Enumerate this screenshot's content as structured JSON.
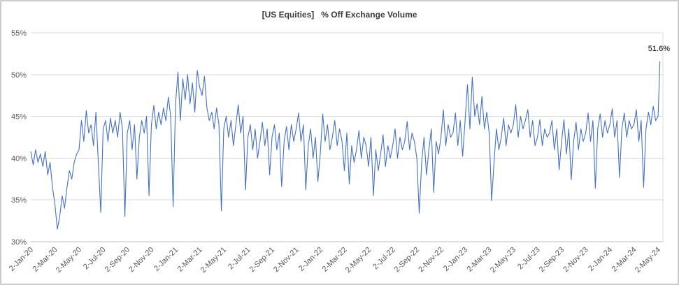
{
  "chart_data": {
    "type": "line",
    "title": "[US Equities]   % Off Exchange Volume",
    "xlabel": "",
    "ylabel": "",
    "legend": "none",
    "grid": "horizontal",
    "ylim": [
      30,
      55
    ],
    "xlim": [
      0,
      52.4
    ],
    "line_color": "#4472C4",
    "gridline_color": "#d9d9d9",
    "axis_line_color": "#bfbfbf",
    "tick_label_color": "#595959",
    "annotation": {
      "text": "51.6%",
      "x": 52.15,
      "y": 51.6
    },
    "y_ticks": [
      {
        "value": 30,
        "label": "30%"
      },
      {
        "value": 35,
        "label": "35%"
      },
      {
        "value": 40,
        "label": "40%"
      },
      {
        "value": 45,
        "label": "45%"
      },
      {
        "value": 50,
        "label": "50%"
      },
      {
        "value": 55,
        "label": "55%"
      }
    ],
    "x_ticks": [
      {
        "pos": 0,
        "label": "2-Jan-20"
      },
      {
        "pos": 2,
        "label": "2-Mar-20"
      },
      {
        "pos": 4,
        "label": "2-May-20"
      },
      {
        "pos": 6,
        "label": "2-Jul-20"
      },
      {
        "pos": 8,
        "label": "2-Sep-20"
      },
      {
        "pos": 10,
        "label": "2-Nov-20"
      },
      {
        "pos": 12,
        "label": "2-Jan-21"
      },
      {
        "pos": 14,
        "label": "2-Mar-21"
      },
      {
        "pos": 16,
        "label": "2-May-21"
      },
      {
        "pos": 18,
        "label": "2-Jul-21"
      },
      {
        "pos": 20,
        "label": "2-Sep-21"
      },
      {
        "pos": 22,
        "label": "2-Nov-21"
      },
      {
        "pos": 24,
        "label": "2-Jan-22"
      },
      {
        "pos": 26,
        "label": "2-Mar-22"
      },
      {
        "pos": 28,
        "label": "2-May-22"
      },
      {
        "pos": 30,
        "label": "2-Jul-22"
      },
      {
        "pos": 32,
        "label": "2-Sep-22"
      },
      {
        "pos": 34,
        "label": "2-Nov-22"
      },
      {
        "pos": 36,
        "label": "2-Jan-23"
      },
      {
        "pos": 38,
        "label": "2-Mar-23"
      },
      {
        "pos": 40,
        "label": "2-May-23"
      },
      {
        "pos": 42,
        "label": "2-Jul-23"
      },
      {
        "pos": 44,
        "label": "2-Sep-23"
      },
      {
        "pos": 46,
        "label": "2-Nov-23"
      },
      {
        "pos": 48,
        "label": "2-Jan-24"
      },
      {
        "pos": 50,
        "label": "2-Mar-24"
      },
      {
        "pos": 52,
        "label": "2-May-24"
      }
    ],
    "series": [
      {
        "points": [
          [
            0,
            40.8
          ],
          [
            0.2,
            39.2
          ],
          [
            0.4,
            41
          ],
          [
            0.6,
            39.5
          ],
          [
            0.8,
            40.5
          ],
          [
            1,
            39
          ],
          [
            1.2,
            40.8
          ],
          [
            1.4,
            38
          ],
          [
            1.6,
            39.5
          ],
          [
            1.8,
            36.5
          ],
          [
            2,
            34.5
          ],
          [
            2.2,
            31.5
          ],
          [
            2.4,
            33
          ],
          [
            2.6,
            35.5
          ],
          [
            2.8,
            34
          ],
          [
            3,
            36.5
          ],
          [
            3.2,
            38.5
          ],
          [
            3.4,
            37.5
          ],
          [
            3.6,
            39.5
          ],
          [
            3.8,
            40.5
          ],
          [
            4,
            41
          ],
          [
            4.2,
            44.5
          ],
          [
            4.4,
            42
          ],
          [
            4.6,
            45.7
          ],
          [
            4.8,
            43
          ],
          [
            5,
            44
          ],
          [
            5.2,
            41.5
          ],
          [
            5.4,
            45.5
          ],
          [
            5.6,
            39.5
          ],
          [
            5.8,
            33.5
          ],
          [
            6,
            43.5
          ],
          [
            6.2,
            44.5
          ],
          [
            6.4,
            42
          ],
          [
            6.6,
            44.8
          ],
          [
            6.8,
            43
          ],
          [
            7,
            44.5
          ],
          [
            7.2,
            42.5
          ],
          [
            7.4,
            45.5
          ],
          [
            7.6,
            43.5
          ],
          [
            7.8,
            33
          ],
          [
            8,
            43
          ],
          [
            8.2,
            44.5
          ],
          [
            8.4,
            41
          ],
          [
            8.6,
            44
          ],
          [
            8.8,
            37.5
          ],
          [
            9,
            42.5
          ],
          [
            9.2,
            44.5
          ],
          [
            9.4,
            43
          ],
          [
            9.6,
            45
          ],
          [
            9.8,
            35.5
          ],
          [
            10,
            44
          ],
          [
            10.2,
            46.3
          ],
          [
            10.4,
            43.5
          ],
          [
            10.6,
            45.5
          ],
          [
            10.8,
            44
          ],
          [
            11,
            46
          ],
          [
            11.2,
            44.5
          ],
          [
            11.4,
            47.3
          ],
          [
            11.6,
            45
          ],
          [
            11.8,
            34.2
          ],
          [
            12,
            46.5
          ],
          [
            12.2,
            50.3
          ],
          [
            12.4,
            44.5
          ],
          [
            12.6,
            49.5
          ],
          [
            12.8,
            47
          ],
          [
            13,
            50
          ],
          [
            13.2,
            46.5
          ],
          [
            13.4,
            49
          ],
          [
            13.6,
            45.5
          ],
          [
            13.8,
            50.5
          ],
          [
            14,
            48.5
          ],
          [
            14.2,
            47.5
          ],
          [
            14.4,
            49.8
          ],
          [
            14.6,
            46
          ],
          [
            14.8,
            44.5
          ],
          [
            15,
            45.5
          ],
          [
            15.2,
            43.5
          ],
          [
            15.4,
            46
          ],
          [
            15.6,
            44
          ],
          [
            15.8,
            33.7
          ],
          [
            16,
            43.5
          ],
          [
            16.2,
            45
          ],
          [
            16.4,
            42.5
          ],
          [
            16.6,
            44.5
          ],
          [
            16.8,
            41.5
          ],
          [
            17,
            44
          ],
          [
            17.2,
            46.4
          ],
          [
            17.4,
            43
          ],
          [
            17.6,
            45
          ],
          [
            17.8,
            36.2
          ],
          [
            18,
            42.5
          ],
          [
            18.2,
            44
          ],
          [
            18.4,
            41
          ],
          [
            18.6,
            43.5
          ],
          [
            18.8,
            40
          ],
          [
            19,
            42
          ],
          [
            19.2,
            44.3
          ],
          [
            19.4,
            41.5
          ],
          [
            19.6,
            43.5
          ],
          [
            19.8,
            38
          ],
          [
            20,
            42.5
          ],
          [
            20.2,
            44
          ],
          [
            20.4,
            41
          ],
          [
            20.6,
            43
          ],
          [
            20.8,
            36.6
          ],
          [
            21,
            42
          ],
          [
            21.2,
            43.8
          ],
          [
            21.4,
            41
          ],
          [
            21.6,
            44
          ],
          [
            21.8,
            42
          ],
          [
            22,
            43.5
          ],
          [
            22.2,
            45.4
          ],
          [
            22.4,
            42
          ],
          [
            22.6,
            44
          ],
          [
            22.8,
            36.2
          ],
          [
            23,
            41.5
          ],
          [
            23.2,
            43.5
          ],
          [
            23.4,
            40
          ],
          [
            23.6,
            42.5
          ],
          [
            23.8,
            37.2
          ],
          [
            24,
            40.5
          ],
          [
            24.2,
            45.3
          ],
          [
            24.4,
            42
          ],
          [
            24.6,
            44
          ],
          [
            24.8,
            41
          ],
          [
            25,
            42.5
          ],
          [
            25.2,
            44.5
          ],
          [
            25.4,
            41.5
          ],
          [
            25.6,
            43.5
          ],
          [
            25.8,
            42
          ],
          [
            26,
            38.5
          ],
          [
            26.2,
            43
          ],
          [
            26.4,
            36.9
          ],
          [
            26.6,
            41.5
          ],
          [
            26.8,
            39.5
          ],
          [
            27,
            41
          ],
          [
            27.2,
            43.3
          ],
          [
            27.4,
            40
          ],
          [
            27.6,
            42.5
          ],
          [
            27.8,
            41.5
          ],
          [
            28,
            39
          ],
          [
            28.2,
            42.5
          ],
          [
            28.4,
            35.5
          ],
          [
            28.6,
            41
          ],
          [
            28.8,
            38.5
          ],
          [
            29,
            40.5
          ],
          [
            29.2,
            42.8
          ],
          [
            29.4,
            39
          ],
          [
            29.6,
            41.5
          ],
          [
            29.8,
            40
          ],
          [
            30,
            41.5
          ],
          [
            30.2,
            43.5
          ],
          [
            30.4,
            40
          ],
          [
            30.6,
            42.5
          ],
          [
            30.8,
            41
          ],
          [
            31,
            42
          ],
          [
            31.2,
            44.4
          ],
          [
            31.4,
            41
          ],
          [
            31.6,
            43
          ],
          [
            31.8,
            42
          ],
          [
            32,
            40
          ],
          [
            32.2,
            33.4
          ],
          [
            32.4,
            39.5
          ],
          [
            32.6,
            42.5
          ],
          [
            32.8,
            38
          ],
          [
            33,
            41
          ],
          [
            33.2,
            43.5
          ],
          [
            33.4,
            35.9
          ],
          [
            33.6,
            42
          ],
          [
            33.8,
            40.5
          ],
          [
            34,
            42.5
          ],
          [
            34.2,
            45.8
          ],
          [
            34.4,
            41.5
          ],
          [
            34.6,
            44
          ],
          [
            34.8,
            42.5
          ],
          [
            35,
            43
          ],
          [
            35.2,
            45.4
          ],
          [
            35.4,
            41.5
          ],
          [
            35.6,
            44.5
          ],
          [
            35.8,
            40.2
          ],
          [
            36,
            44.5
          ],
          [
            36.2,
            48.8
          ],
          [
            36.4,
            43.5
          ],
          [
            36.6,
            49.7
          ],
          [
            36.8,
            45
          ],
          [
            37,
            46.5
          ],
          [
            37.2,
            44
          ],
          [
            37.4,
            47.4
          ],
          [
            37.6,
            43.5
          ],
          [
            37.8,
            45.5
          ],
          [
            38,
            43
          ],
          [
            38.2,
            34.9
          ],
          [
            38.4,
            39.5
          ],
          [
            38.6,
            43.5
          ],
          [
            38.8,
            41
          ],
          [
            39,
            42.5
          ],
          [
            39.2,
            44.8
          ],
          [
            39.4,
            41.5
          ],
          [
            39.6,
            44
          ],
          [
            39.8,
            43
          ],
          [
            40,
            44
          ],
          [
            40.2,
            46.4
          ],
          [
            40.4,
            42.5
          ],
          [
            40.6,
            45
          ],
          [
            40.8,
            43.5
          ],
          [
            41,
            44.5
          ],
          [
            41.2,
            45.8
          ],
          [
            41.4,
            42.5
          ],
          [
            41.6,
            44.5
          ],
          [
            41.8,
            41.5
          ],
          [
            42,
            42.5
          ],
          [
            42.2,
            44.6
          ],
          [
            42.4,
            41.5
          ],
          [
            42.6,
            43.5
          ],
          [
            42.8,
            42.5
          ],
          [
            43,
            43
          ],
          [
            43.2,
            44.5
          ],
          [
            43.4,
            41
          ],
          [
            43.6,
            43.5
          ],
          [
            43.8,
            38.6
          ],
          [
            44,
            42
          ],
          [
            44.2,
            44.6
          ],
          [
            44.4,
            40.5
          ],
          [
            44.6,
            43.5
          ],
          [
            44.8,
            37.4
          ],
          [
            45,
            42
          ],
          [
            45.2,
            44.3
          ],
          [
            45.4,
            41
          ],
          [
            45.6,
            43.5
          ],
          [
            45.8,
            42
          ],
          [
            46,
            43
          ],
          [
            46.2,
            45.4
          ],
          [
            46.4,
            42
          ],
          [
            46.6,
            44.5
          ],
          [
            46.8,
            36.4
          ],
          [
            47,
            43.5
          ],
          [
            47.2,
            45.3
          ],
          [
            47.4,
            42.5
          ],
          [
            47.6,
            44.5
          ],
          [
            47.8,
            43
          ],
          [
            48,
            44
          ],
          [
            48.2,
            45.9
          ],
          [
            48.4,
            42.5
          ],
          [
            48.6,
            44.5
          ],
          [
            48.8,
            37.7
          ],
          [
            49,
            43.5
          ],
          [
            49.2,
            45.4
          ],
          [
            49.4,
            42.5
          ],
          [
            49.6,
            44.5
          ],
          [
            49.8,
            43.5
          ],
          [
            50,
            44
          ],
          [
            50.2,
            45.8
          ],
          [
            50.4,
            42
          ],
          [
            50.6,
            44.5
          ],
          [
            50.8,
            36.5
          ],
          [
            51,
            43.5
          ],
          [
            51.2,
            45.5
          ],
          [
            51.4,
            44
          ],
          [
            51.6,
            46.2
          ],
          [
            51.8,
            44.5
          ],
          [
            52,
            45
          ],
          [
            52.15,
            51.6
          ]
        ]
      }
    ]
  }
}
